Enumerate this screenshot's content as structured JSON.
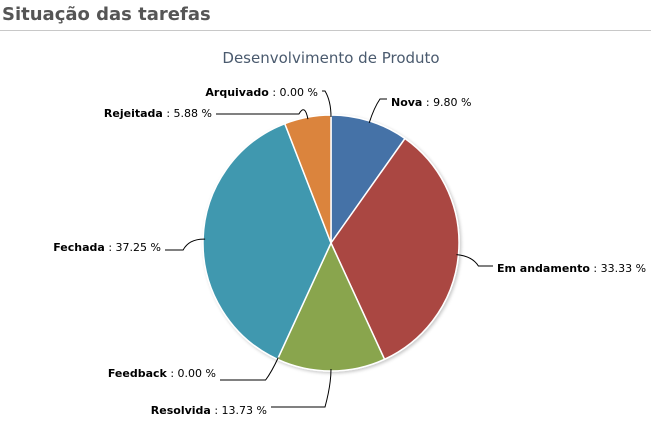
{
  "section": {
    "title": "Situação das tarefas"
  },
  "chart_data": {
    "type": "pie",
    "title": "Desenvolvimento de Produto",
    "slices": [
      {
        "name": "Nova",
        "value": 9.8,
        "display": "9.80 %",
        "color": "#4572a7"
      },
      {
        "name": "Em andamento",
        "value": 33.33,
        "display": "33.33 %",
        "color": "#aa4643"
      },
      {
        "name": "Resolvida",
        "value": 13.73,
        "display": "13.73 %",
        "color": "#89a54e"
      },
      {
        "name": "Feedback",
        "value": 0.0,
        "display": "0.00 %",
        "color": "#71588f"
      },
      {
        "name": "Fechada",
        "value": 37.25,
        "display": "37.25 %",
        "color": "#4198af"
      },
      {
        "name": "Rejeitada",
        "value": 5.88,
        "display": "5.88 %",
        "color": "#db843d"
      },
      {
        "name": "Arquivado",
        "value": 0.0,
        "display": "0.00 %",
        "color": "#93a9cf"
      }
    ]
  }
}
